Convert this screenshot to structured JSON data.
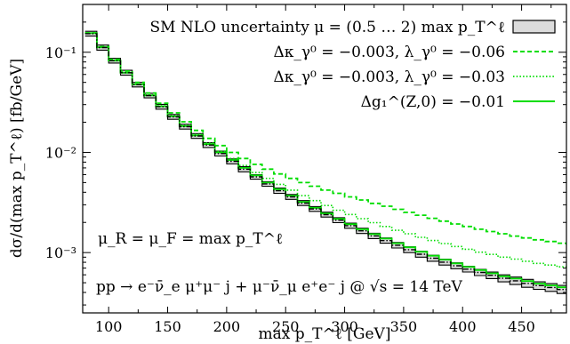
{
  "chart_data": {
    "type": "line",
    "xlabel": "max p_T^ℓ [GeV]",
    "ylabel": "dσ/d(max p_T^ℓ) [fb/GeV]",
    "xlim": [
      78,
      488
    ],
    "ylim": [
      0.00025,
      0.3
    ],
    "yscale": "log",
    "grid": false,
    "legend_position": "top-right",
    "x_ticks": [
      100,
      150,
      200,
      250,
      300,
      350,
      400,
      450
    ],
    "x_tick_labels": [
      "100",
      "150",
      "200",
      "250",
      "300",
      "350",
      "400",
      "450"
    ],
    "y_ticks": [
      0.001,
      0.01,
      0.1
    ],
    "y_tick_labels": [
      "10⁻³",
      "10⁻²",
      "10⁻¹"
    ],
    "annotations": [
      "μ_R = μ_F = max p_T^ℓ",
      "pp → e⁻ν̄_e μ⁺μ⁻ j + μ⁻ν̄_μ e⁺e⁻ j @ √s = 14 TeV"
    ],
    "band": {
      "name": "SM NLO uncertainty μ = (0.5 … 2) max p_T^ℓ",
      "x": [
        80,
        90,
        100,
        110,
        120,
        130,
        140,
        150,
        160,
        170,
        180,
        190,
        200,
        210,
        220,
        230,
        240,
        250,
        260,
        270,
        280,
        290,
        300,
        310,
        320,
        330,
        340,
        350,
        360,
        370,
        380,
        390,
        400,
        410,
        420,
        430,
        440,
        450,
        460,
        470,
        480,
        488
      ],
      "lower": [
        0.145,
        0.105,
        0.078,
        0.059,
        0.045,
        0.035,
        0.027,
        0.0214,
        0.0171,
        0.0138,
        0.0112,
        0.0092,
        0.0077,
        0.0064,
        0.0054,
        0.0046,
        0.0039,
        0.0034,
        0.00295,
        0.00258,
        0.00226,
        0.00199,
        0.00175,
        0.00155,
        0.00138,
        0.00124,
        0.00111,
        0.001,
        0.0009,
        0.00082,
        0.00075,
        0.00069,
        0.00064,
        0.00059,
        0.00055,
        0.00051,
        0.00048,
        0.00045,
        0.00043,
        0.00041,
        0.00039,
        0.00038
      ],
      "upper": [
        0.162,
        0.118,
        0.087,
        0.066,
        0.05,
        0.039,
        0.0302,
        0.0239,
        0.0191,
        0.0154,
        0.0125,
        0.0103,
        0.0086,
        0.0072,
        0.006,
        0.0051,
        0.0044,
        0.0038,
        0.0033,
        0.00288,
        0.00253,
        0.00223,
        0.00197,
        0.00175,
        0.00156,
        0.0014,
        0.00126,
        0.00114,
        0.00103,
        0.00094,
        0.00086,
        0.00079,
        0.00073,
        0.00068,
        0.00064,
        0.0006,
        0.00057,
        0.00054,
        0.00051,
        0.00049,
        0.00047,
        0.00046
      ]
    },
    "series": [
      {
        "name": "Δκ_γ⁰ = −0.003,  λ_γ⁰ = −0.06",
        "color": "#00dd00",
        "style": "dashed",
        "x": [
          80,
          90,
          100,
          110,
          120,
          130,
          140,
          150,
          160,
          170,
          180,
          190,
          200,
          210,
          220,
          230,
          240,
          250,
          260,
          270,
          280,
          290,
          300,
          310,
          320,
          330,
          340,
          350,
          360,
          370,
          380,
          390,
          400,
          410,
          420,
          430,
          440,
          450,
          460,
          470,
          480,
          488
        ],
        "values": [
          0.156,
          0.114,
          0.085,
          0.065,
          0.05,
          0.0392,
          0.0309,
          0.0248,
          0.0202,
          0.0166,
          0.0138,
          0.0117,
          0.01,
          0.0087,
          0.0076,
          0.0068,
          0.0061,
          0.0055,
          0.005,
          0.0046,
          0.0042,
          0.0039,
          0.0036,
          0.00335,
          0.0031,
          0.0029,
          0.0027,
          0.00252,
          0.00236,
          0.0022,
          0.00206,
          0.00193,
          0.00182,
          0.00171,
          0.00162,
          0.00154,
          0.00146,
          0.0014,
          0.00134,
          0.00129,
          0.00124,
          0.0012
        ]
      },
      {
        "name": "Δκ_γ⁰ = −0.003,  λ_γ⁰ = −0.03",
        "color": "#00dd00",
        "style": "dotted",
        "x": [
          80,
          90,
          100,
          110,
          120,
          130,
          140,
          150,
          160,
          170,
          180,
          190,
          200,
          210,
          220,
          230,
          240,
          250,
          260,
          270,
          280,
          290,
          300,
          310,
          320,
          330,
          340,
          350,
          360,
          370,
          380,
          390,
          400,
          410,
          420,
          430,
          440,
          450,
          460,
          470,
          480,
          488
        ],
        "values": [
          0.154,
          0.112,
          0.083,
          0.063,
          0.048,
          0.0375,
          0.0292,
          0.0232,
          0.0186,
          0.0151,
          0.0124,
          0.0103,
          0.0087,
          0.0074,
          0.0063,
          0.0055,
          0.0048,
          0.0042,
          0.0037,
          0.0033,
          0.00295,
          0.00265,
          0.0024,
          0.00218,
          0.00199,
          0.00182,
          0.00167,
          0.00154,
          0.00142,
          0.00132,
          0.00123,
          0.00115,
          0.00108,
          0.00101,
          0.00096,
          0.0009,
          0.00086,
          0.00082,
          0.00078,
          0.00075,
          0.00072,
          0.0007
        ]
      },
      {
        "name": "Δg₁^(Z,0) = −0.01",
        "color": "#00dd00",
        "style": "solid",
        "x": [
          80,
          90,
          100,
          110,
          120,
          130,
          140,
          150,
          160,
          170,
          180,
          190,
          200,
          210,
          220,
          230,
          240,
          250,
          260,
          270,
          280,
          290,
          300,
          310,
          320,
          330,
          340,
          350,
          360,
          370,
          380,
          390,
          400,
          410,
          420,
          430,
          440,
          450,
          460,
          470,
          480,
          488
        ],
        "values": [
          0.155,
          0.112,
          0.0825,
          0.0625,
          0.0478,
          0.0371,
          0.0288,
          0.0229,
          0.0183,
          0.0148,
          0.0121,
          0.01,
          0.0084,
          0.007,
          0.0059,
          0.005,
          0.0043,
          0.0037,
          0.0032,
          0.0028,
          0.00246,
          0.00217,
          0.00192,
          0.00171,
          0.00153,
          0.00138,
          0.00124,
          0.00113,
          0.00102,
          0.00093,
          0.00085,
          0.00078,
          0.00072,
          0.00067,
          0.00062,
          0.00058,
          0.00055,
          0.00052,
          0.00049,
          0.00047,
          0.00045,
          0.00044
        ]
      }
    ]
  }
}
